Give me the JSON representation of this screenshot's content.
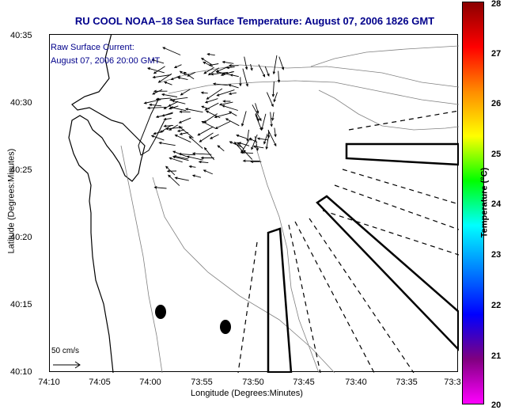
{
  "title": "RU COOL  NOAA–18  Sea Surface Temperature:  August 07, 2006 1826 GMT",
  "legend": {
    "line1": "Raw Surface Current:",
    "line2": "August 07, 2006 20:00 GMT"
  },
  "axes": {
    "xlabel": "Longitude (Degrees:Minutes)",
    "ylabel": "Latitude (Degrees:Minutes)",
    "xticks": [
      "74:10",
      "74:05",
      "74:00",
      "73:55",
      "73:50",
      "73:45",
      "73:40",
      "73:35",
      "73:3"
    ],
    "yticks": [
      "40:35",
      "40:30",
      "40:25",
      "40:20",
      "40:15",
      "40:10"
    ]
  },
  "scale": {
    "label": "50 cm/s"
  },
  "colorbar": {
    "label": "Temperature (°C)",
    "ticks": [
      "28",
      "27",
      "26",
      "25",
      "24",
      "23",
      "22",
      "21",
      "20"
    ],
    "stops": [
      "#8b0000",
      "#ff0000",
      "#ff8c00",
      "#ffff00",
      "#00ff00",
      "#00ffff",
      "#0080ff",
      "#0000ff",
      "#800080",
      "#ff00ff"
    ]
  },
  "colors": {
    "title": "#00008b",
    "land": "#ffffff",
    "contour": "#808080"
  }
}
